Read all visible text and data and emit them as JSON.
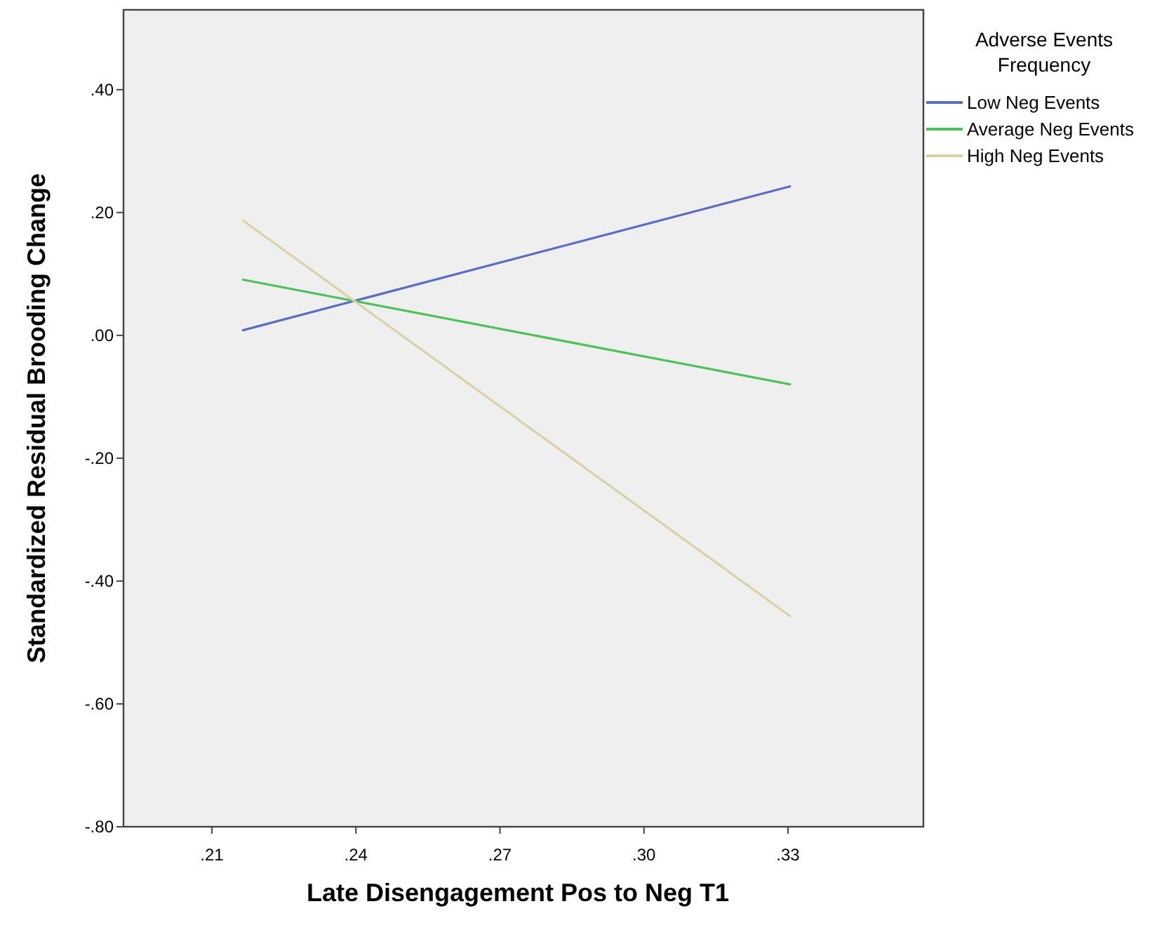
{
  "chart_data": {
    "type": "line",
    "xlabel": "Late Disengagement Pos to Neg T1",
    "ylabel": "Standardized Residual Brooding Change",
    "legend_title": "Adverse Events Frequency",
    "xlim": [
      0.1916,
      0.3582
    ],
    "xticks": [
      {
        "value": 0.21,
        "label": ".21"
      },
      {
        "value": 0.24,
        "label": ".24"
      },
      {
        "value": 0.27,
        "label": ".27"
      },
      {
        "value": 0.3,
        "label": ".30"
      },
      {
        "value": 0.33,
        "label": ".33"
      }
    ],
    "ylim": [
      -0.8,
      0.53
    ],
    "yticks": [
      {
        "value": -0.8,
        "label": "-.80"
      },
      {
        "value": -0.6,
        "label": "-.60"
      },
      {
        "value": -0.4,
        "label": "-.40"
      },
      {
        "value": -0.2,
        "label": "-.20"
      },
      {
        "value": 0,
        "label": ".00"
      },
      {
        "value": 0.2,
        "label": ".20"
      },
      {
        "value": 0.4,
        "label": ".40"
      }
    ],
    "x": [
      0.2163,
      0.3306
    ],
    "series": [
      {
        "name": "Low Neg Events",
        "color": "#5b6cc4",
        "values": [
          0.008,
          0.243
        ]
      },
      {
        "name": "Average Neg Events",
        "color": "#4cc35a",
        "values": [
          0.091,
          -0.08
        ]
      },
      {
        "name": "High Neg Events",
        "color": "#d9d3a4",
        "values": [
          0.188,
          -0.458
        ]
      }
    ],
    "legend": "top right",
    "grid": false,
    "marker": "none",
    "line_style": "solid"
  }
}
